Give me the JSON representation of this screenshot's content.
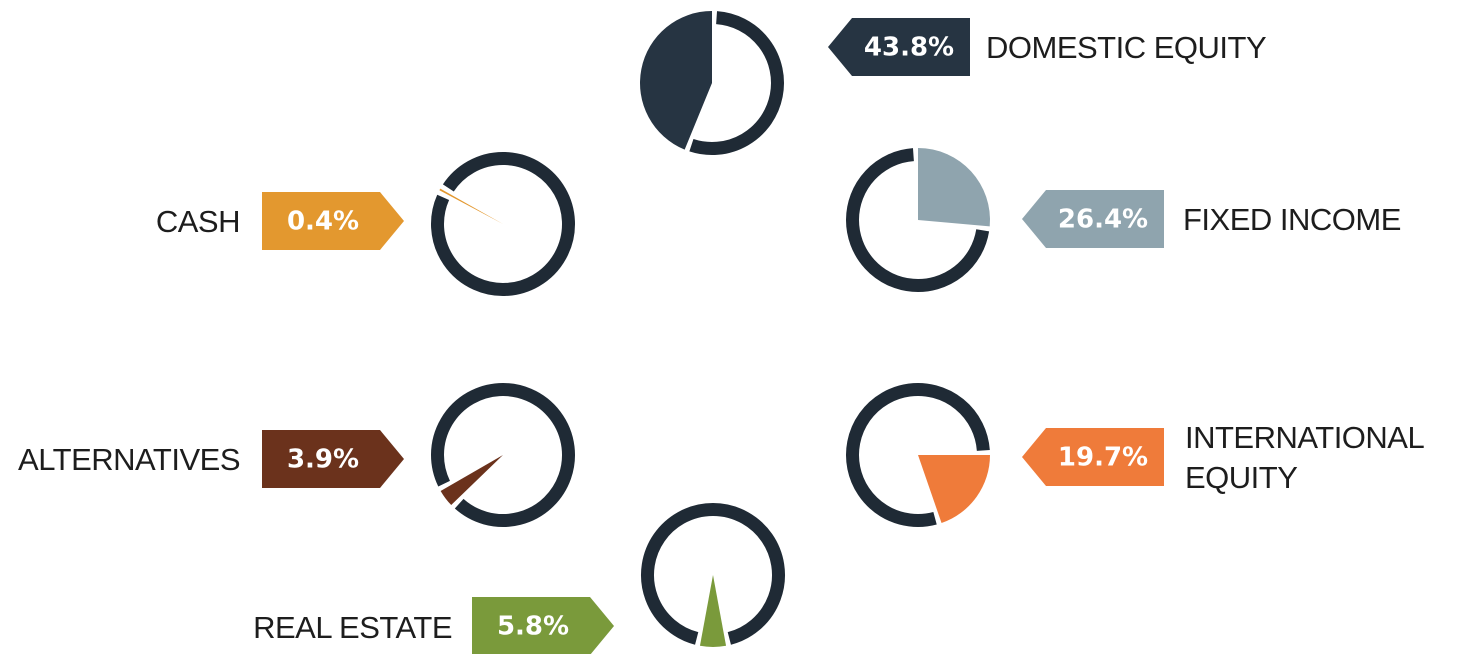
{
  "chart_data": {
    "type": "pie",
    "categories": [
      "DOMESTIC EQUITY",
      "FIXED INCOME",
      "CASH",
      "ALTERNATIVES",
      "INTERNATIONAL EQUITY",
      "REAL ESTATE"
    ],
    "values": [
      43.8,
      26.4,
      0.4,
      3.9,
      19.7,
      5.8
    ],
    "value_labels": [
      "43.8%",
      "26.4%",
      "0.4%",
      "3.9%",
      "19.7%",
      "5.8%"
    ],
    "colors": [
      "#263442",
      "#8fa4ae",
      "#e3982f",
      "#6b321c",
      "#ef7b3a",
      "#7a9a3b"
    ]
  }
}
